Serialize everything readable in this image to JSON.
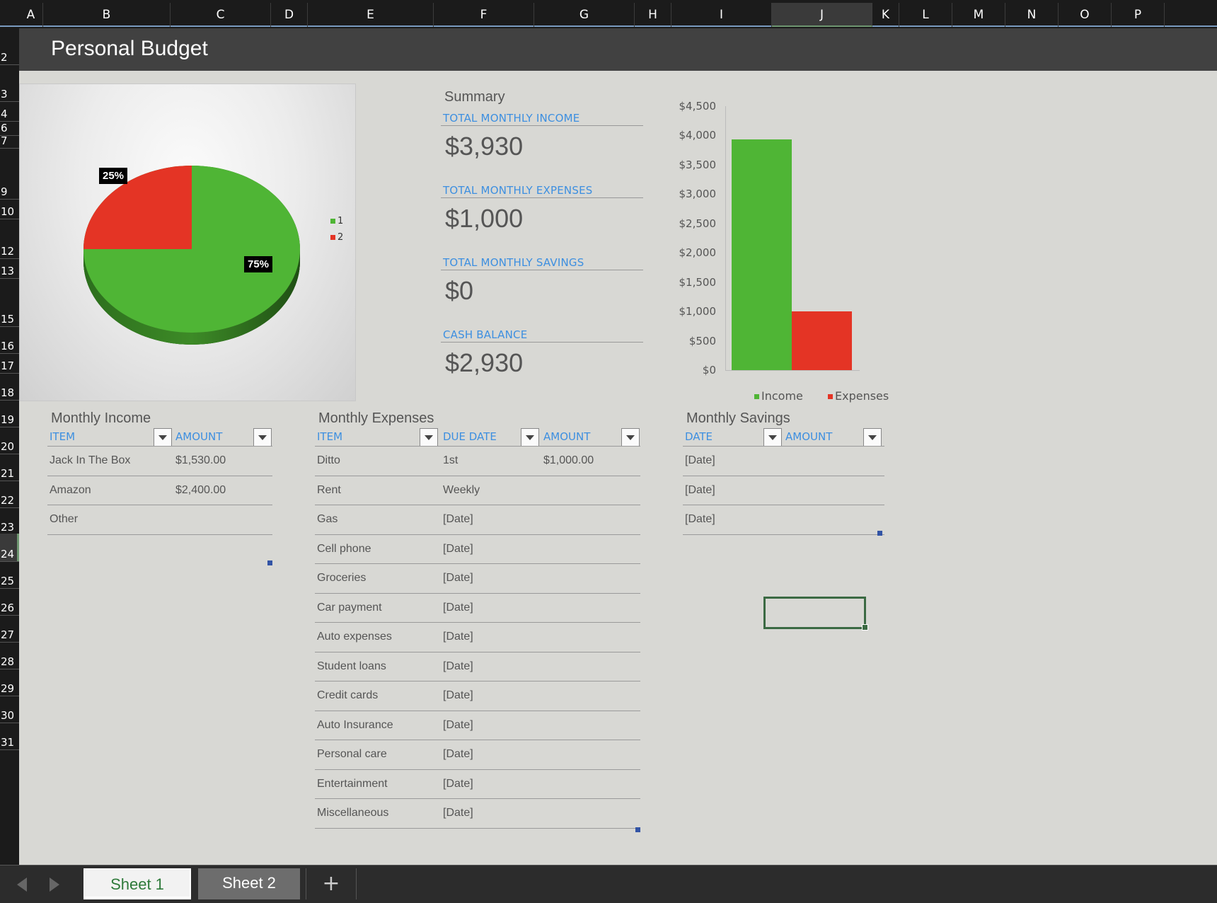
{
  "columns": [
    "A",
    "B",
    "C",
    "D",
    "E",
    "F",
    "G",
    "H",
    "I",
    "J",
    "K",
    "L",
    "M",
    "N",
    "O",
    "P"
  ],
  "selected_column": "J",
  "rows": [
    "2",
    "3",
    "4",
    "6",
    "7",
    "9",
    "10",
    "12",
    "13",
    "15",
    "16",
    "17",
    "18",
    "19",
    "20",
    "21",
    "22",
    "23",
    "24",
    "25",
    "26",
    "27",
    "28",
    "29",
    "30",
    "31"
  ],
  "selected_row": "24",
  "title": "Personal Budget",
  "pie_chart": {
    "slices": [
      {
        "legend": "1",
        "percent": 75,
        "label": "75%",
        "color": "#4fb535"
      },
      {
        "legend": "2",
        "percent": 25,
        "label": "25%",
        "color": "#e43425"
      }
    ]
  },
  "summary": {
    "heading": "Summary",
    "items": [
      {
        "label": "TOTAL MONTHLY INCOME",
        "value": "$3,930"
      },
      {
        "label": "TOTAL MONTHLY EXPENSES",
        "value": "$1,000"
      },
      {
        "label": "TOTAL MONTHLY SAVINGS",
        "value": "$0"
      },
      {
        "label": "CASH BALANCE",
        "value": "$2,930"
      }
    ]
  },
  "chart_data": {
    "type": "bar",
    "categories": [
      "Income",
      "Expenses"
    ],
    "values": [
      3930,
      1000
    ],
    "colors": [
      "#4fb535",
      "#e43425"
    ],
    "ylim": [
      0,
      4500
    ],
    "yticks": [
      "$4,500",
      "$4,000",
      "$3,500",
      "$3,000",
      "$2,500",
      "$2,000",
      "$1,500",
      "$1,000",
      "$500",
      "$0"
    ],
    "legend": [
      "Income",
      "Expenses"
    ],
    "legend_position": "bottom"
  },
  "income": {
    "title": "Monthly Income",
    "headers": [
      "ITEM",
      "AMOUNT"
    ],
    "rows": [
      {
        "item": "Jack In The Box",
        "amount": "$1,530.00"
      },
      {
        "item": "Amazon",
        "amount": "$2,400.00"
      },
      {
        "item": "Other",
        "amount": ""
      }
    ]
  },
  "expenses": {
    "title": "Monthly Expenses",
    "headers": [
      "ITEM",
      "DUE DATE",
      "AMOUNT"
    ],
    "rows": [
      {
        "item": "Ditto",
        "due": "1st",
        "amount": "$1,000.00"
      },
      {
        "item": "Rent",
        "due": "Weekly",
        "amount": ""
      },
      {
        "item": "Gas",
        "due": "[Date]",
        "amount": ""
      },
      {
        "item": "Cell phone",
        "due": "[Date]",
        "amount": ""
      },
      {
        "item": "Groceries",
        "due": "[Date]",
        "amount": ""
      },
      {
        "item": "Car payment",
        "due": "[Date]",
        "amount": ""
      },
      {
        "item": "Auto expenses",
        "due": "[Date]",
        "amount": ""
      },
      {
        "item": "Student loans",
        "due": "[Date]",
        "amount": ""
      },
      {
        "item": "Credit cards",
        "due": "[Date]",
        "amount": ""
      },
      {
        "item": "Auto Insurance",
        "due": "[Date]",
        "amount": ""
      },
      {
        "item": "Personal care",
        "due": "[Date]",
        "amount": ""
      },
      {
        "item": "Entertainment",
        "due": "[Date]",
        "amount": ""
      },
      {
        "item": "Miscellaneous",
        "due": "[Date]",
        "amount": ""
      }
    ]
  },
  "savings": {
    "title": "Monthly Savings",
    "headers": [
      "DATE",
      "AMOUNT"
    ],
    "rows": [
      {
        "date": "[Date]",
        "amount": ""
      },
      {
        "date": "[Date]",
        "amount": ""
      },
      {
        "date": "[Date]",
        "amount": ""
      }
    ]
  },
  "tabs": {
    "sheet1": "Sheet 1",
    "sheet2": "Sheet 2",
    "add": "+"
  }
}
